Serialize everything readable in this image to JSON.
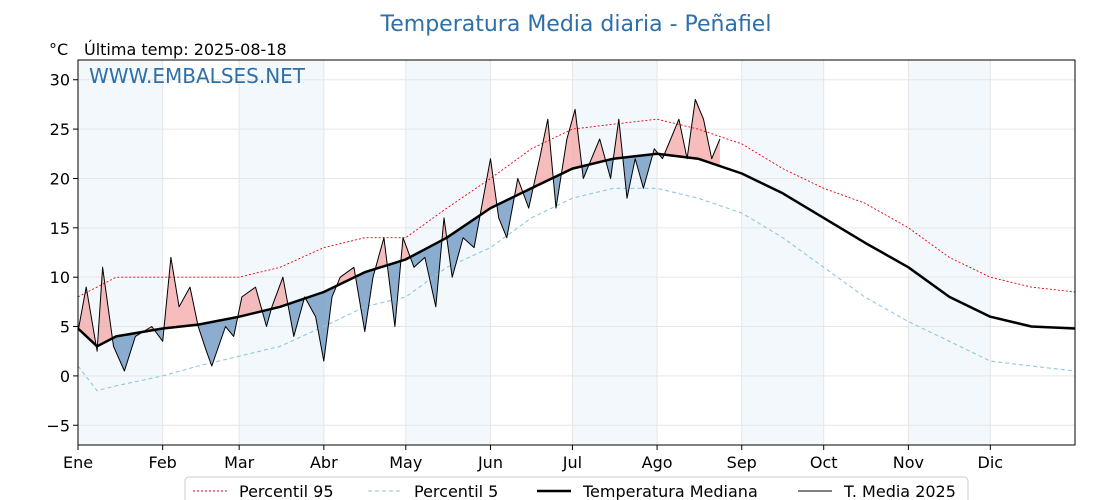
{
  "chart_data": {
    "type": "line",
    "title": "Temperatura Media diaria - Peñafiel",
    "unit_label": "°C",
    "subtitle": "Última temp: 2025-08-18",
    "watermark": "WWW.EMBALSES.NET",
    "ylim": [
      -7,
      32
    ],
    "y_ticks": [
      -5,
      0,
      5,
      10,
      15,
      20,
      25,
      30
    ],
    "y_tick_labels": [
      "−5",
      "0",
      "5",
      "10",
      "15",
      "20",
      "25",
      "30"
    ],
    "x_ticks": [
      {
        "label": "Ene",
        "day": 1
      },
      {
        "label": "Feb",
        "day": 32
      },
      {
        "label": "Mar",
        "day": 60
      },
      {
        "label": "Abr",
        "day": 91
      },
      {
        "label": "May",
        "day": 121
      },
      {
        "label": "Jun",
        "day": 152
      },
      {
        "label": "Jul",
        "day": 182
      },
      {
        "label": "Ago",
        "day": 213
      },
      {
        "label": "Sep",
        "day": 244
      },
      {
        "label": "Oct",
        "day": 274
      },
      {
        "label": "Nov",
        "day": 305
      },
      {
        "label": "Dic",
        "day": 335
      }
    ],
    "shaded_months": [
      [
        1,
        32
      ],
      [
        60,
        91
      ],
      [
        121,
        152
      ],
      [
        182,
        213
      ],
      [
        244,
        274
      ],
      [
        305,
        335
      ]
    ],
    "grid": true,
    "legend_position": "bottom",
    "series": [
      {
        "name": "Percentil 95",
        "key": "p95",
        "color": "#e8000b",
        "style": "dotted",
        "points": [
          [
            1,
            8
          ],
          [
            15,
            10
          ],
          [
            32,
            10
          ],
          [
            50,
            10
          ],
          [
            60,
            10
          ],
          [
            75,
            11
          ],
          [
            91,
            13
          ],
          [
            106,
            14
          ],
          [
            121,
            14
          ],
          [
            136,
            17
          ],
          [
            152,
            20
          ],
          [
            167,
            23
          ],
          [
            182,
            25
          ],
          [
            197,
            25.5
          ],
          [
            213,
            26
          ],
          [
            228,
            25
          ],
          [
            244,
            23.5
          ],
          [
            259,
            21
          ],
          [
            274,
            19
          ],
          [
            289,
            17.5
          ],
          [
            305,
            15
          ],
          [
            320,
            12
          ],
          [
            335,
            10
          ],
          [
            350,
            9
          ],
          [
            366,
            8.5
          ]
        ]
      },
      {
        "name": "Percentil 5",
        "key": "p5",
        "color": "#92c6e0",
        "style": "dashed",
        "points": [
          [
            1,
            1
          ],
          [
            8,
            -1.5
          ],
          [
            15,
            -1
          ],
          [
            32,
            0
          ],
          [
            45,
            1
          ],
          [
            60,
            2
          ],
          [
            75,
            3
          ],
          [
            91,
            5
          ],
          [
            106,
            7
          ],
          [
            121,
            8
          ],
          [
            136,
            11
          ],
          [
            152,
            13
          ],
          [
            167,
            16
          ],
          [
            182,
            18
          ],
          [
            197,
            19
          ],
          [
            213,
            19
          ],
          [
            228,
            18
          ],
          [
            244,
            16.5
          ],
          [
            259,
            14
          ],
          [
            274,
            11
          ],
          [
            289,
            8
          ],
          [
            305,
            5.5
          ],
          [
            320,
            3.5
          ],
          [
            335,
            1.5
          ],
          [
            350,
            1
          ],
          [
            366,
            0.5
          ]
        ]
      },
      {
        "name": "Temperatura Mediana",
        "key": "median",
        "color": "#000000",
        "style": "solid-thick",
        "points": [
          [
            1,
            4.8
          ],
          [
            8,
            3
          ],
          [
            15,
            4
          ],
          [
            32,
            4.8
          ],
          [
            45,
            5.2
          ],
          [
            60,
            6
          ],
          [
            75,
            7
          ],
          [
            91,
            8.5
          ],
          [
            106,
            10.5
          ],
          [
            121,
            11.8
          ],
          [
            136,
            14
          ],
          [
            152,
            17
          ],
          [
            167,
            19
          ],
          [
            182,
            21
          ],
          [
            197,
            22
          ],
          [
            213,
            22.5
          ],
          [
            228,
            22
          ],
          [
            244,
            20.5
          ],
          [
            259,
            18.5
          ],
          [
            274,
            16
          ],
          [
            289,
            13.5
          ],
          [
            305,
            11
          ],
          [
            320,
            8
          ],
          [
            335,
            6
          ],
          [
            350,
            5
          ],
          [
            366,
            4.8
          ]
        ]
      },
      {
        "name": "T. Media 2025",
        "key": "y2025",
        "color": "#000000",
        "style": "solid-thin",
        "points": [
          [
            1,
            4.5
          ],
          [
            4,
            9
          ],
          [
            8,
            2.5
          ],
          [
            10,
            11
          ],
          [
            14,
            3
          ],
          [
            18,
            0.5
          ],
          [
            22,
            4
          ],
          [
            28,
            5
          ],
          [
            32,
            3.5
          ],
          [
            35,
            12
          ],
          [
            38,
            7
          ],
          [
            42,
            9
          ],
          [
            45,
            5
          ],
          [
            48,
            2.5
          ],
          [
            50,
            1
          ],
          [
            55,
            5
          ],
          [
            58,
            4
          ],
          [
            61,
            8
          ],
          [
            66,
            9
          ],
          [
            70,
            5
          ],
          [
            72,
            7
          ],
          [
            76,
            10
          ],
          [
            80,
            4
          ],
          [
            84,
            8
          ],
          [
            88,
            6
          ],
          [
            91,
            1.5
          ],
          [
            94,
            8
          ],
          [
            97,
            10
          ],
          [
            102,
            11
          ],
          [
            106,
            4.5
          ],
          [
            109,
            10
          ],
          [
            113,
            14
          ],
          [
            117,
            5
          ],
          [
            120,
            14
          ],
          [
            124,
            11
          ],
          [
            128,
            12
          ],
          [
            132,
            7
          ],
          [
            135,
            16
          ],
          [
            138,
            10
          ],
          [
            142,
            14
          ],
          [
            146,
            13
          ],
          [
            152,
            22
          ],
          [
            155,
            16
          ],
          [
            158,
            14
          ],
          [
            162,
            20
          ],
          [
            166,
            17
          ],
          [
            170,
            22
          ],
          [
            173,
            26
          ],
          [
            176,
            17
          ],
          [
            180,
            24
          ],
          [
            183,
            27
          ],
          [
            186,
            20
          ],
          [
            189,
            22
          ],
          [
            192,
            24
          ],
          [
            196,
            20
          ],
          [
            199,
            26
          ],
          [
            202,
            18
          ],
          [
            205,
            22
          ],
          [
            208,
            19
          ],
          [
            212,
            23
          ],
          [
            215,
            22
          ],
          [
            218,
            24
          ],
          [
            221,
            26
          ],
          [
            224,
            22
          ],
          [
            227,
            28
          ],
          [
            230,
            26
          ],
          [
            233,
            22
          ],
          [
            236,
            24
          ]
        ]
      }
    ]
  }
}
